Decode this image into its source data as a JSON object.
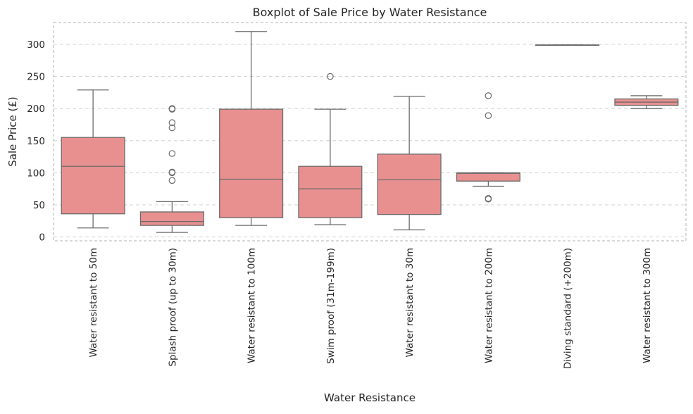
{
  "chart_data": {
    "type": "box",
    "title": "Boxplot of Sale Price by Water Resistance",
    "xlabel": "Water Resistance",
    "ylabel": "Sale Price (£)",
    "ylim": [
      -6,
      334
    ],
    "yticks": [
      0,
      50,
      100,
      150,
      200,
      250,
      300
    ],
    "grid": true,
    "colors": {
      "box_fill": "#e8908f",
      "line": "#6b6b6b",
      "grid": "#d0d0d0",
      "frame": "#b0b0b0"
    },
    "categories": [
      "Water resistant to 50m",
      "Splash proof (up to 30m)",
      "Water resistant to 100m",
      "Swim proof (31m-199m)",
      "Water resistant to 30m",
      "Water resistant to 200m",
      "Diving standard (+200m)",
      "Water resistant to 300m"
    ],
    "boxes": [
      {
        "whisker_low": 14,
        "q1": 36,
        "median": 110,
        "q3": 155,
        "whisker_high": 229,
        "outliers": []
      },
      {
        "whisker_low": 7,
        "q1": 18,
        "median": 24,
        "q3": 39,
        "whisker_high": 55,
        "outliers": [
          88,
          100,
          101,
          130,
          170,
          178,
          199,
          200
        ]
      },
      {
        "whisker_low": 18,
        "q1": 30,
        "median": 90,
        "q3": 199,
        "whisker_high": 320,
        "outliers": []
      },
      {
        "whisker_low": 19,
        "q1": 30,
        "median": 75,
        "q3": 110,
        "whisker_high": 199,
        "outliers": [
          250
        ]
      },
      {
        "whisker_low": 11,
        "q1": 35,
        "median": 89,
        "q3": 129,
        "whisker_high": 219,
        "outliers": []
      },
      {
        "whisker_low": 79,
        "q1": 87,
        "median": 99,
        "q3": 100,
        "whisker_high": 100,
        "outliers": [
          59,
          60,
          189,
          220
        ]
      },
      {
        "whisker_low": 299,
        "q1": 299,
        "median": 299,
        "q3": 299,
        "whisker_high": 299,
        "outliers": []
      },
      {
        "whisker_low": 200,
        "q1": 205,
        "median": 210,
        "q3": 215,
        "whisker_high": 220,
        "outliers": []
      }
    ]
  }
}
